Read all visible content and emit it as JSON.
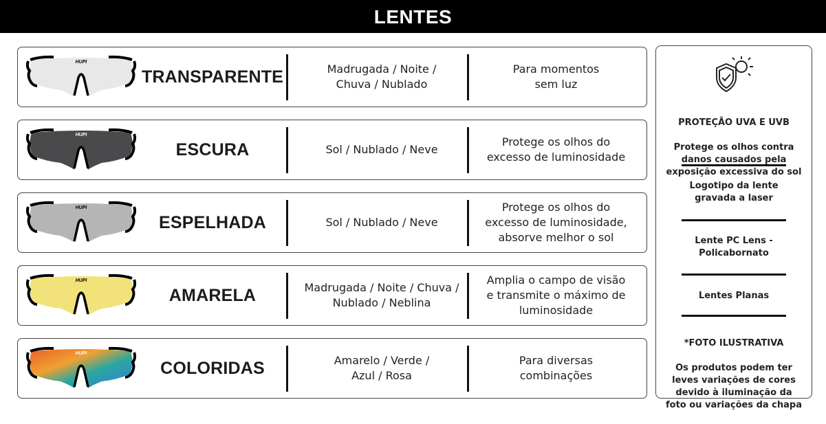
{
  "header": {
    "title": "LENTES"
  },
  "brand": "HUPI",
  "lenses": [
    {
      "name": "TRANSPARENTE",
      "conditions": "Madrugada / Noite /\nChuva / Nublado",
      "description": "Para momentos\nsem luz",
      "lens_color": "#e8e8e8"
    },
    {
      "name": "ESCURA",
      "conditions": "Sol / Nublado / Neve",
      "description": "Protege os olhos do\nexcesso de luminosidade",
      "lens_color": "#4a4a4c"
    },
    {
      "name": "ESPELHADA",
      "conditions": "Sol / Nublado / Neve",
      "description": "Protege os olhos do\nexcesso de luminosidade,\nabsorve melhor o sol",
      "lens_color": "#b5b5b5"
    },
    {
      "name": "AMARELA",
      "conditions": "Madrugada / Noite / Chuva /\nNublado / Neblina",
      "description": "Amplia o campo de visão\ne transmite o máximo de\nluminosidade",
      "lens_color": "#f1e27a"
    },
    {
      "name": "COLORIDAS",
      "conditions": "Amarelo / Verde /\nAzul / Rosa",
      "description": "Para diversas\ncombinações",
      "lens_color": "gradient"
    }
  ],
  "side": {
    "icon": "shield-check-sun-icon",
    "uv_title": "PROTEÇÃO UVA E UVB",
    "uv_text": "Protege os olhos contra\ndanos causados pela\nexposição excessiva do sol",
    "logo_text": "Logotipo da lente\ngravada a laser",
    "material_text": "Lente PC Lens -\nPolicabornato",
    "flat_text": "Lentes Planas",
    "photo_title": "*FOTO ILUSTRATIVA",
    "photo_text": "Os produtos podem ter\nleves variações de cores\ndevido à iluminação da\nfoto ou variações da chapa"
  }
}
